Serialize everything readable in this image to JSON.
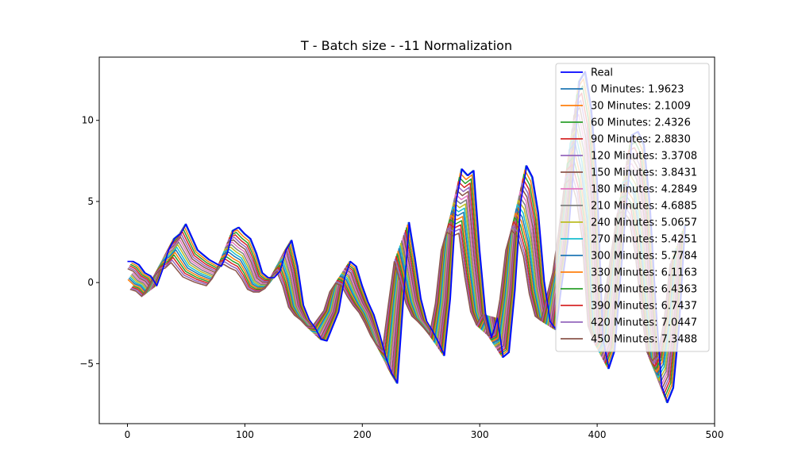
{
  "chart_data": {
    "type": "line",
    "title": "T - Batch size - -11 Normalization",
    "xlabel": "",
    "ylabel": "",
    "xlim": [
      -24,
      500
    ],
    "ylim": [
      -8.7,
      13.9
    ],
    "xticks": [
      0,
      100,
      200,
      300,
      400,
      500
    ],
    "yticks": [
      -5,
      0,
      5,
      10
    ],
    "xtick_labels": [
      "0",
      "100",
      "200",
      "300",
      "400",
      "500"
    ],
    "ytick_labels": [
      "−5",
      "0",
      "5",
      "10"
    ],
    "legend_position": "top-right",
    "real": {
      "name": "Real",
      "color": "#0000ff",
      "points": [
        [
          0,
          1.3
        ],
        [
          5,
          1.3
        ],
        [
          10,
          1.1
        ],
        [
          15,
          0.6
        ],
        [
          20,
          0.4
        ],
        [
          25,
          -0.2
        ],
        [
          30,
          0.8
        ],
        [
          35,
          2.0
        ],
        [
          40,
          2.7
        ],
        [
          45,
          3.0
        ],
        [
          50,
          3.6
        ],
        [
          55,
          2.8
        ],
        [
          60,
          2.0
        ],
        [
          65,
          1.7
        ],
        [
          70,
          1.4
        ],
        [
          75,
          1.2
        ],
        [
          80,
          1.0
        ],
        [
          85,
          1.8
        ],
        [
          90,
          3.2
        ],
        [
          95,
          3.4
        ],
        [
          100,
          3.0
        ],
        [
          105,
          2.7
        ],
        [
          110,
          1.8
        ],
        [
          115,
          0.6
        ],
        [
          120,
          0.3
        ],
        [
          125,
          0.3
        ],
        [
          130,
          0.7
        ],
        [
          135,
          2.0
        ],
        [
          140,
          2.6
        ],
        [
          145,
          1.0
        ],
        [
          150,
          -1.4
        ],
        [
          155,
          -2.3
        ],
        [
          160,
          -2.8
        ],
        [
          165,
          -3.5
        ],
        [
          170,
          -3.6
        ],
        [
          175,
          -2.7
        ],
        [
          180,
          -1.8
        ],
        [
          185,
          0.3
        ],
        [
          190,
          1.3
        ],
        [
          195,
          1.0
        ],
        [
          200,
          -0.2
        ],
        [
          205,
          -1.2
        ],
        [
          210,
          -2.0
        ],
        [
          215,
          -3.2
        ],
        [
          220,
          -4.6
        ],
        [
          225,
          -5.6
        ],
        [
          230,
          -6.2
        ],
        [
          235,
          -1.1
        ],
        [
          240,
          3.7
        ],
        [
          245,
          1.5
        ],
        [
          250,
          -1.0
        ],
        [
          255,
          -2.4
        ],
        [
          260,
          -3.0
        ],
        [
          265,
          -3.7
        ],
        [
          270,
          -4.5
        ],
        [
          275,
          -1.0
        ],
        [
          280,
          5.0
        ],
        [
          285,
          7.0
        ],
        [
          290,
          6.6
        ],
        [
          295,
          6.9
        ],
        [
          300,
          2.0
        ],
        [
          305,
          -1.9
        ],
        [
          310,
          -3.4
        ],
        [
          315,
          -2.2
        ],
        [
          320,
          -4.6
        ],
        [
          325,
          -4.3
        ],
        [
          330,
          -0.5
        ],
        [
          335,
          5.0
        ],
        [
          340,
          7.2
        ],
        [
          345,
          6.5
        ],
        [
          350,
          4.3
        ],
        [
          355,
          0.1
        ],
        [
          360,
          -2.4
        ],
        [
          365,
          -2.9
        ],
        [
          370,
          -0.1
        ],
        [
          375,
          2.5
        ],
        [
          380,
          7.1
        ],
        [
          385,
          12.4
        ],
        [
          390,
          13.0
        ],
        [
          395,
          10.8
        ],
        [
          400,
          6.3
        ],
        [
          405,
          -3.5
        ],
        [
          410,
          -5.3
        ],
        [
          415,
          -4.2
        ],
        [
          420,
          0.3
        ],
        [
          425,
          4.9
        ],
        [
          430,
          9.1
        ],
        [
          435,
          9.3
        ],
        [
          440,
          8.5
        ],
        [
          445,
          4.8
        ],
        [
          450,
          -1.3
        ],
        [
          455,
          -6.4
        ],
        [
          460,
          -7.4
        ],
        [
          465,
          -6.5
        ],
        [
          470,
          -2.6
        ],
        [
          475,
          3.5
        ]
      ]
    },
    "series": [
      {
        "name": "0 Minutes: 1.9623",
        "color": "#1f77b4",
        "lag": 0
      },
      {
        "name": "30 Minutes: 2.1009",
        "color": "#ff7f0e",
        "lag": 1
      },
      {
        "name": "60 Minutes: 2.4326",
        "color": "#2ca02c",
        "lag": 2
      },
      {
        "name": "90 Minutes: 2.8830",
        "color": "#d62728",
        "lag": 3
      },
      {
        "name": "120 Minutes: 3.3708",
        "color": "#9467bd",
        "lag": 4
      },
      {
        "name": "150 Minutes: 3.8431",
        "color": "#8c564b",
        "lag": 5
      },
      {
        "name": "180 Minutes: 4.2849",
        "color": "#e377c2",
        "lag": 6
      },
      {
        "name": "210 Minutes: 4.6885",
        "color": "#7f7f7f",
        "lag": 7
      },
      {
        "name": "240 Minutes: 5.0657",
        "color": "#bcbd22",
        "lag": 8
      },
      {
        "name": "270 Minutes: 5.4251",
        "color": "#17becf",
        "lag": 9
      },
      {
        "name": "300 Minutes: 5.7784",
        "color": "#1f77b4",
        "lag": 10
      },
      {
        "name": "330 Minutes: 6.1163",
        "color": "#ff7f0e",
        "lag": 11
      },
      {
        "name": "360 Minutes: 6.4363",
        "color": "#2ca02c",
        "lag": 12
      },
      {
        "name": "390 Minutes: 6.7437",
        "color": "#d62728",
        "lag": 13
      },
      {
        "name": "420 Minutes: 7.0447",
        "color": "#9467bd",
        "lag": 14
      },
      {
        "name": "450 Minutes: 7.3488",
        "color": "#8c564b",
        "lag": 15
      }
    ]
  }
}
